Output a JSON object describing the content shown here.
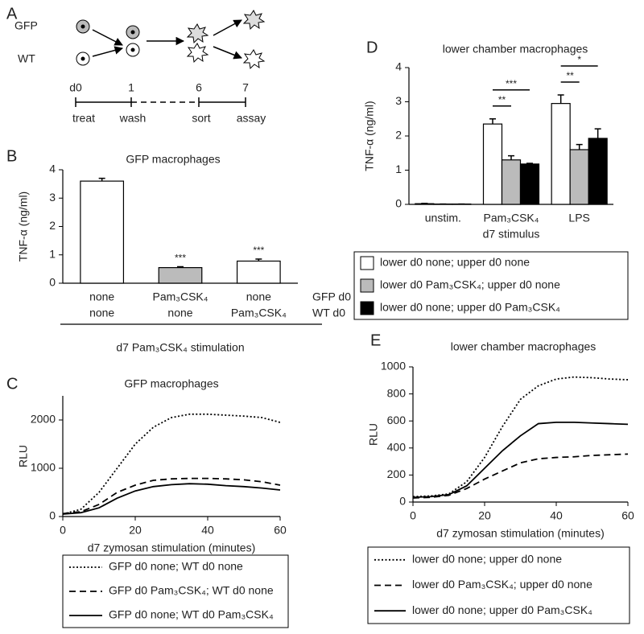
{
  "diagram": {
    "panel": "A",
    "cells": [
      "GFP",
      "WT"
    ],
    "days": [
      "d0",
      "1",
      "6",
      "7"
    ],
    "steps": [
      "treat",
      "wash",
      "sort",
      "assay"
    ]
  },
  "chart_data": [
    {
      "type": "bar",
      "panel": "B",
      "title": "GFP macrophages",
      "ylabel": "TNF-α (ng/ml)",
      "categories": [
        [
          "none",
          "none"
        ],
        [
          "Pam₃CSK₄",
          "none"
        ],
        [
          "none",
          "Pam₃CSK₄"
        ]
      ],
      "category_row_labels": [
        "GFP d0",
        "WT d0"
      ],
      "xlabel": "d7 Pam₃CSK₄ stimulation",
      "values": [
        3.6,
        0.55,
        0.78
      ],
      "errors": [
        0.1,
        0.03,
        0.07
      ],
      "colors": [
        "#ffffff",
        "#bbbbbb",
        "#ffffff"
      ],
      "value_annotations": [
        null,
        "***",
        "***"
      ],
      "ylim": [
        0,
        4
      ],
      "yticks": [
        0,
        1,
        2,
        3,
        4
      ],
      "grid": false
    },
    {
      "type": "line",
      "panel": "C",
      "title": "GFP macrophages",
      "ylabel": "RLU",
      "xlabel": "d7 zymosan stimulation (minutes)",
      "x": [
        0,
        5,
        10,
        15,
        20,
        25,
        30,
        35,
        40,
        45,
        50,
        55,
        60
      ],
      "series": [
        {
          "name": "GFP d0 none; WT d0 none",
          "color": "#000000",
          "dash": "dotted",
          "values": [
            50,
            150,
            500,
            1000,
            1500,
            1850,
            2050,
            2120,
            2120,
            2100,
            2080,
            2050,
            1950
          ]
        },
        {
          "name": "GFP d0 Pam₃CSK₄; WT d0 none",
          "color": "#000000",
          "dash": "dashed",
          "values": [
            60,
            100,
            250,
            500,
            650,
            750,
            780,
            790,
            790,
            780,
            760,
            720,
            650
          ]
        },
        {
          "name": "GFP d0 none; WT d0 Pam₃CSK₄",
          "color": "#000000",
          "dash": "solid",
          "values": [
            50,
            80,
            180,
            380,
            530,
            620,
            660,
            680,
            670,
            640,
            620,
            590,
            550
          ]
        }
      ],
      "xlim": [
        0,
        60
      ],
      "xticks": [
        0,
        20,
        40,
        60
      ],
      "ylim": [
        0,
        2500
      ],
      "yticks": [
        0,
        1000,
        2000
      ],
      "grid": false
    },
    {
      "type": "bar",
      "panel": "D",
      "title": "lower chamber macrophages",
      "ylabel": "TNF-α (ng/ml)",
      "categories": [
        [
          "unstim."
        ],
        [
          "Pam₃CSK₄",
          "d7 stimulus"
        ],
        [
          "LPS"
        ]
      ],
      "series": [
        {
          "name": "lower d0 none; upper d0 none",
          "color": "#ffffff",
          "values": [
            0.02,
            2.35,
            2.95
          ],
          "errors": [
            0.01,
            0.15,
            0.25
          ]
        },
        {
          "name": "lower d0 Pam₃CSK₄; upper d0 none",
          "color": "#bbbbbb",
          "values": [
            0.01,
            1.3,
            1.6
          ],
          "errors": [
            0,
            0.12,
            0.15
          ]
        },
        {
          "name": "lower d0 none; upper d0 Pam₃CSK₄",
          "color": "#000000",
          "values": [
            0.01,
            1.18,
            1.93
          ],
          "errors": [
            0,
            0.02,
            0.28
          ]
        }
      ],
      "significance": [
        {
          "category": 1,
          "series": [
            0,
            1
          ],
          "label": "**"
        },
        {
          "category": 1,
          "series": [
            0,
            2
          ],
          "label": "***"
        },
        {
          "category": 2,
          "series": [
            0,
            1
          ],
          "label": "**"
        },
        {
          "category": 2,
          "series": [
            0,
            2
          ],
          "label": "*"
        }
      ],
      "ylim": [
        0,
        4
      ],
      "yticks": [
        0,
        1,
        2,
        3,
        4
      ],
      "grid": false
    },
    {
      "type": "line",
      "panel": "E",
      "title": "lower chamber macrophages",
      "ylabel": "RLU",
      "xlabel": "d7 zymosan stimulation (minutes)",
      "x": [
        0,
        5,
        10,
        15,
        20,
        25,
        30,
        35,
        40,
        45,
        50,
        55,
        60
      ],
      "series": [
        {
          "name": "lower d0 none; upper d0 none",
          "color": "#000000",
          "dash": "dotted",
          "values": [
            40,
            45,
            60,
            150,
            330,
            560,
            760,
            860,
            910,
            925,
            920,
            910,
            905
          ]
        },
        {
          "name": "lower d0 Pam₃CSK₄; upper d0 none",
          "color": "#000000",
          "dash": "dashed",
          "values": [
            30,
            35,
            50,
            100,
            170,
            230,
            290,
            320,
            330,
            335,
            345,
            350,
            355
          ]
        },
        {
          "name": "lower d0 none; upper d0 Pam₃CSK₄",
          "color": "#000000",
          "dash": "solid",
          "values": [
            35,
            40,
            55,
            120,
            250,
            380,
            490,
            580,
            590,
            590,
            585,
            580,
            575
          ]
        }
      ],
      "xlim": [
        0,
        60
      ],
      "xticks": [
        0,
        20,
        40,
        60
      ],
      "ylim": [
        0,
        1000
      ],
      "yticks": [
        0,
        200,
        400,
        600,
        800,
        1000
      ],
      "grid": false
    }
  ]
}
